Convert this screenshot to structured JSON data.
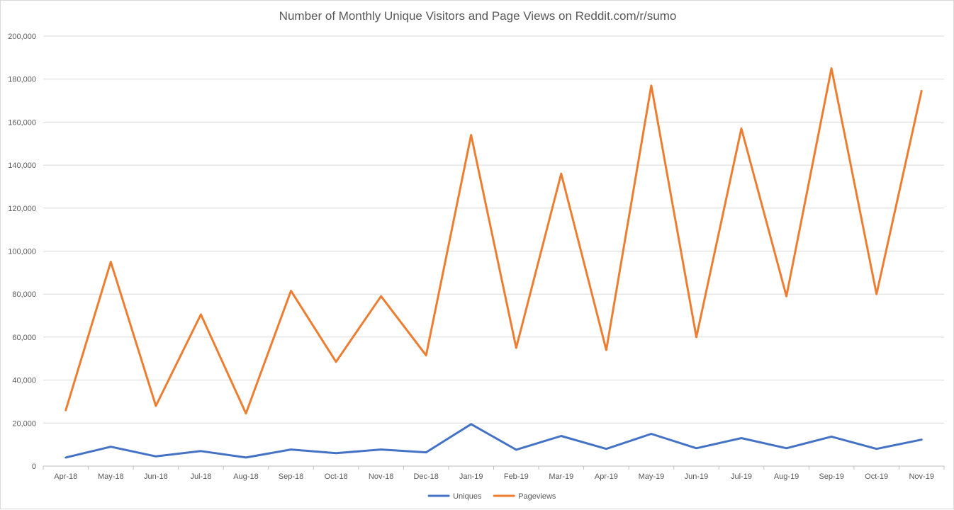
{
  "chart_data": {
    "type": "line",
    "title": "Number of Monthly Unique Visitors and Page Views on Reddit.com/r/sumo",
    "xlabel": "",
    "ylabel": "",
    "categories": [
      "Apr-18",
      "May-18",
      "Jun-18",
      "Jul-18",
      "Aug-18",
      "Sep-18",
      "Oct-18",
      "Nov-18",
      "Dec-18",
      "Jan-19",
      "Feb-19",
      "Mar-19",
      "Apr-19",
      "May-19",
      "Jun-19",
      "Jul-19",
      "Aug-19",
      "Sep-19",
      "Oct-19",
      "Nov-19"
    ],
    "ylim": [
      0,
      200000
    ],
    "yticks": [
      0,
      20000,
      40000,
      60000,
      80000,
      100000,
      120000,
      140000,
      160000,
      180000,
      200000
    ],
    "ytick_labels": [
      "0",
      "20,000",
      "40,000",
      "60,000",
      "80,000",
      "100,000",
      "120,000",
      "140,000",
      "160,000",
      "180,000",
      "200,000"
    ],
    "grid": true,
    "legend_position": "bottom",
    "series": [
      {
        "name": "Uniques",
        "color": "#4472c4",
        "values": [
          4000,
          9000,
          4500,
          7000,
          4000,
          7700,
          6000,
          7700,
          6400,
          19500,
          7600,
          14000,
          8000,
          15000,
          8300,
          13000,
          8300,
          13700,
          8000,
          12300
        ]
      },
      {
        "name": "Pageviews",
        "color": "#ed7d31",
        "values": [
          26000,
          95000,
          28000,
          70500,
          24500,
          81500,
          48500,
          79000,
          51500,
          154000,
          55000,
          136000,
          54000,
          177000,
          60000,
          157000,
          79000,
          185000,
          80000,
          174500
        ]
      }
    ]
  }
}
